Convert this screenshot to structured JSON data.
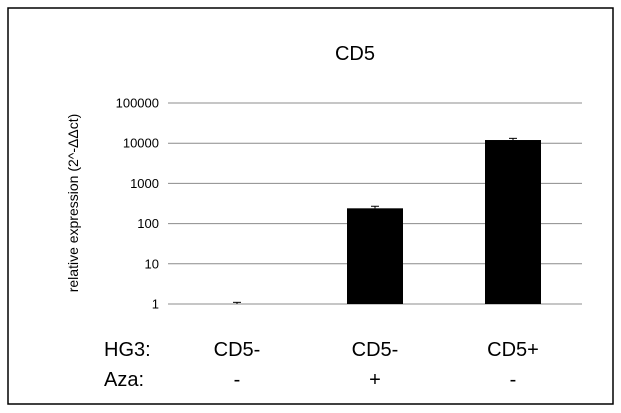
{
  "chart_data": {
    "type": "bar",
    "title": "CD5",
    "ylabel": "relative expression (2^-ΔΔct)",
    "xlabel": "",
    "scale": "log",
    "ylim": [
      1,
      100000
    ],
    "yticks": [
      "1",
      "10",
      "100",
      "1000",
      "10000",
      "100000"
    ],
    "grid": true,
    "categories": [
      "CD5- / -",
      "CD5- / +",
      "CD5+ / -"
    ],
    "values": [
      1,
      240,
      12000
    ],
    "error": [
      0.1,
      30,
      1200
    ],
    "bar_color": "#000000",
    "rows": [
      {
        "label": "HG3:",
        "values": [
          "CD5-",
          "CD5-",
          "CD5+"
        ]
      },
      {
        "label": "Aza:",
        "values": [
          "-",
          "+",
          "-"
        ]
      }
    ]
  }
}
